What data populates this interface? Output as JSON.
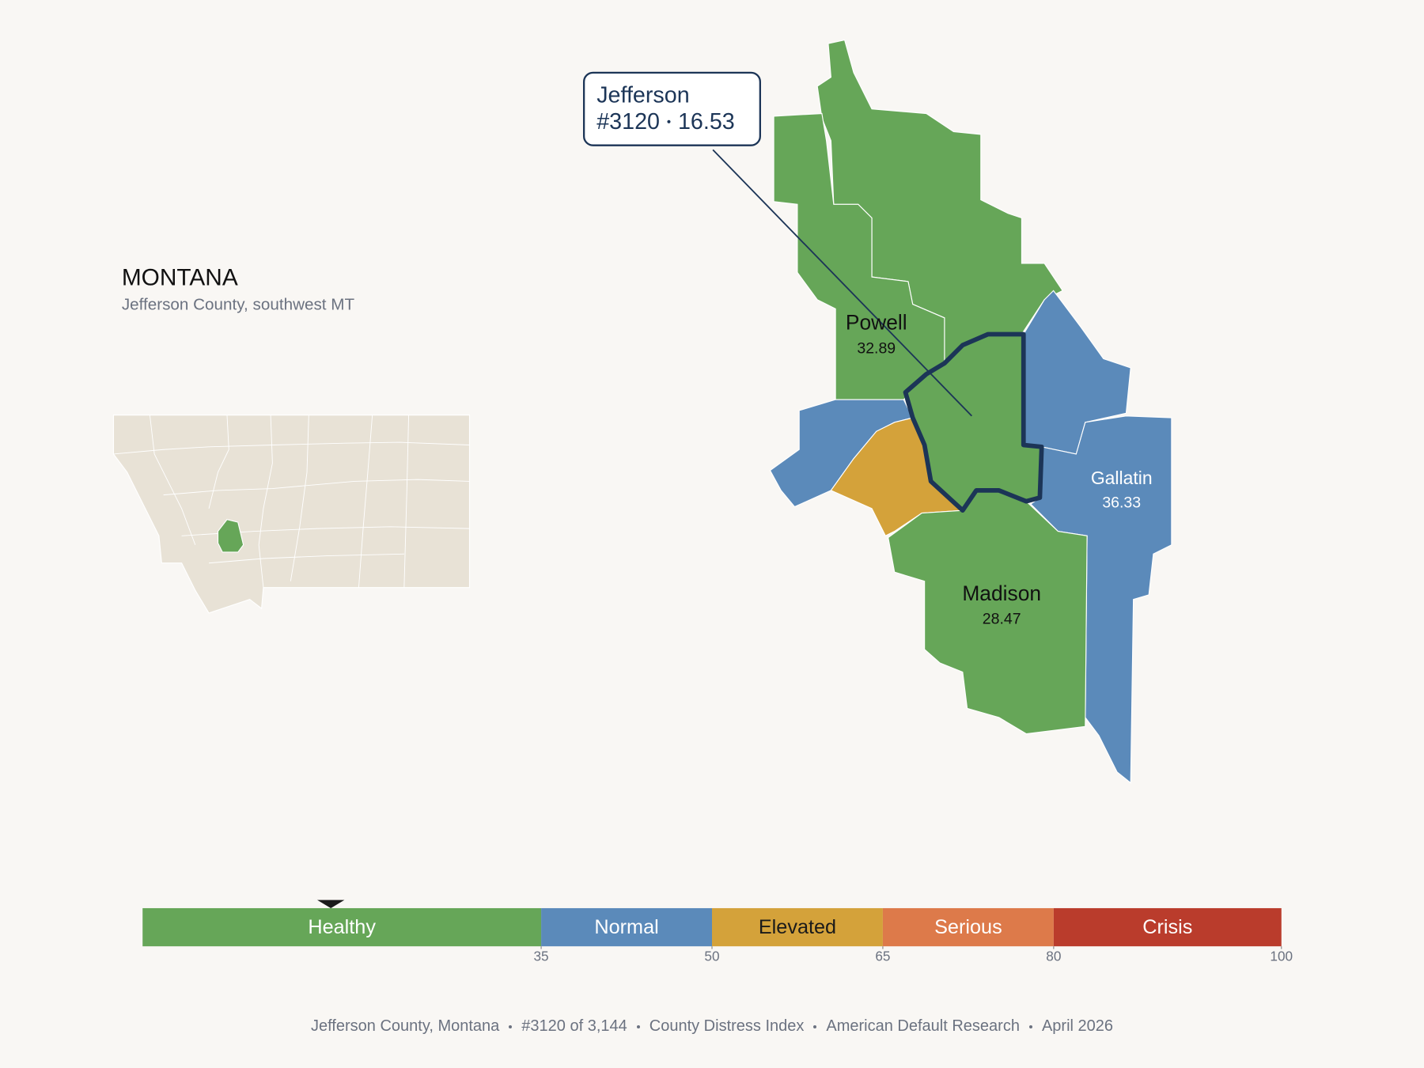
{
  "header": {
    "title": "MONTANA",
    "subtitle": "Jefferson County, southwest MT"
  },
  "map": {
    "counties": [
      {
        "name": "Powell",
        "value": 32.89
      },
      {
        "name": "Gallatin",
        "value": 36.33
      },
      {
        "name": "Madison",
        "value": 28.47
      }
    ],
    "highlight": {
      "name": "Jefferson",
      "rank": "#3120",
      "value": 16.53
    }
  },
  "legend": {
    "range": [
      0,
      100
    ],
    "ticks": [
      35,
      50,
      65,
      80,
      100
    ],
    "bins": [
      {
        "label": "Healthy",
        "color": "#66a658"
      },
      {
        "label": "Normal",
        "color": "#5b8aba"
      },
      {
        "label": "Elevated",
        "color": "#d4a23a"
      },
      {
        "label": "Serious",
        "color": "#dd7a4a"
      },
      {
        "label": "Crisis",
        "color": "#ba3c2c"
      }
    ]
  },
  "footer": [
    "Jefferson County, Montana",
    "#3120 of 3,144",
    "County Distress Index",
    "American Default Research",
    "April 2026"
  ]
}
